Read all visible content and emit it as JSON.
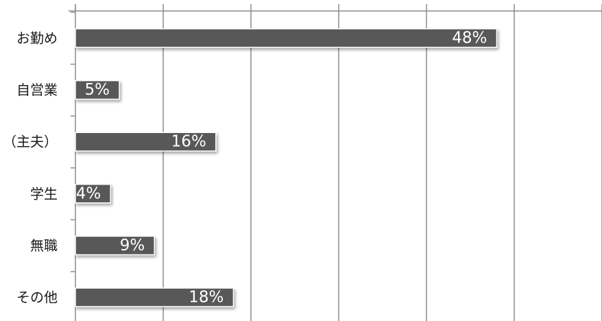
{
  "chart_data": {
    "type": "bar",
    "orientation": "horizontal",
    "categories": [
      "お勤め",
      "自営業",
      "（主夫）",
      "学生",
      "無職",
      "その他"
    ],
    "values": [
      48,
      5,
      16,
      4,
      9,
      18
    ],
    "value_labels": [
      "48%",
      "5%",
      "16%",
      "4%",
      "9%",
      "18%"
    ],
    "xlim": [
      0,
      60
    ],
    "grid": true,
    "legend": "none",
    "colors": {
      "bar": "#595959",
      "bar_edge": "#ffffff",
      "grid": "#8c8c8c",
      "axis": "#8c8c8c",
      "category_text": "#1a1a1a",
      "value_text": "#ffffff"
    }
  }
}
